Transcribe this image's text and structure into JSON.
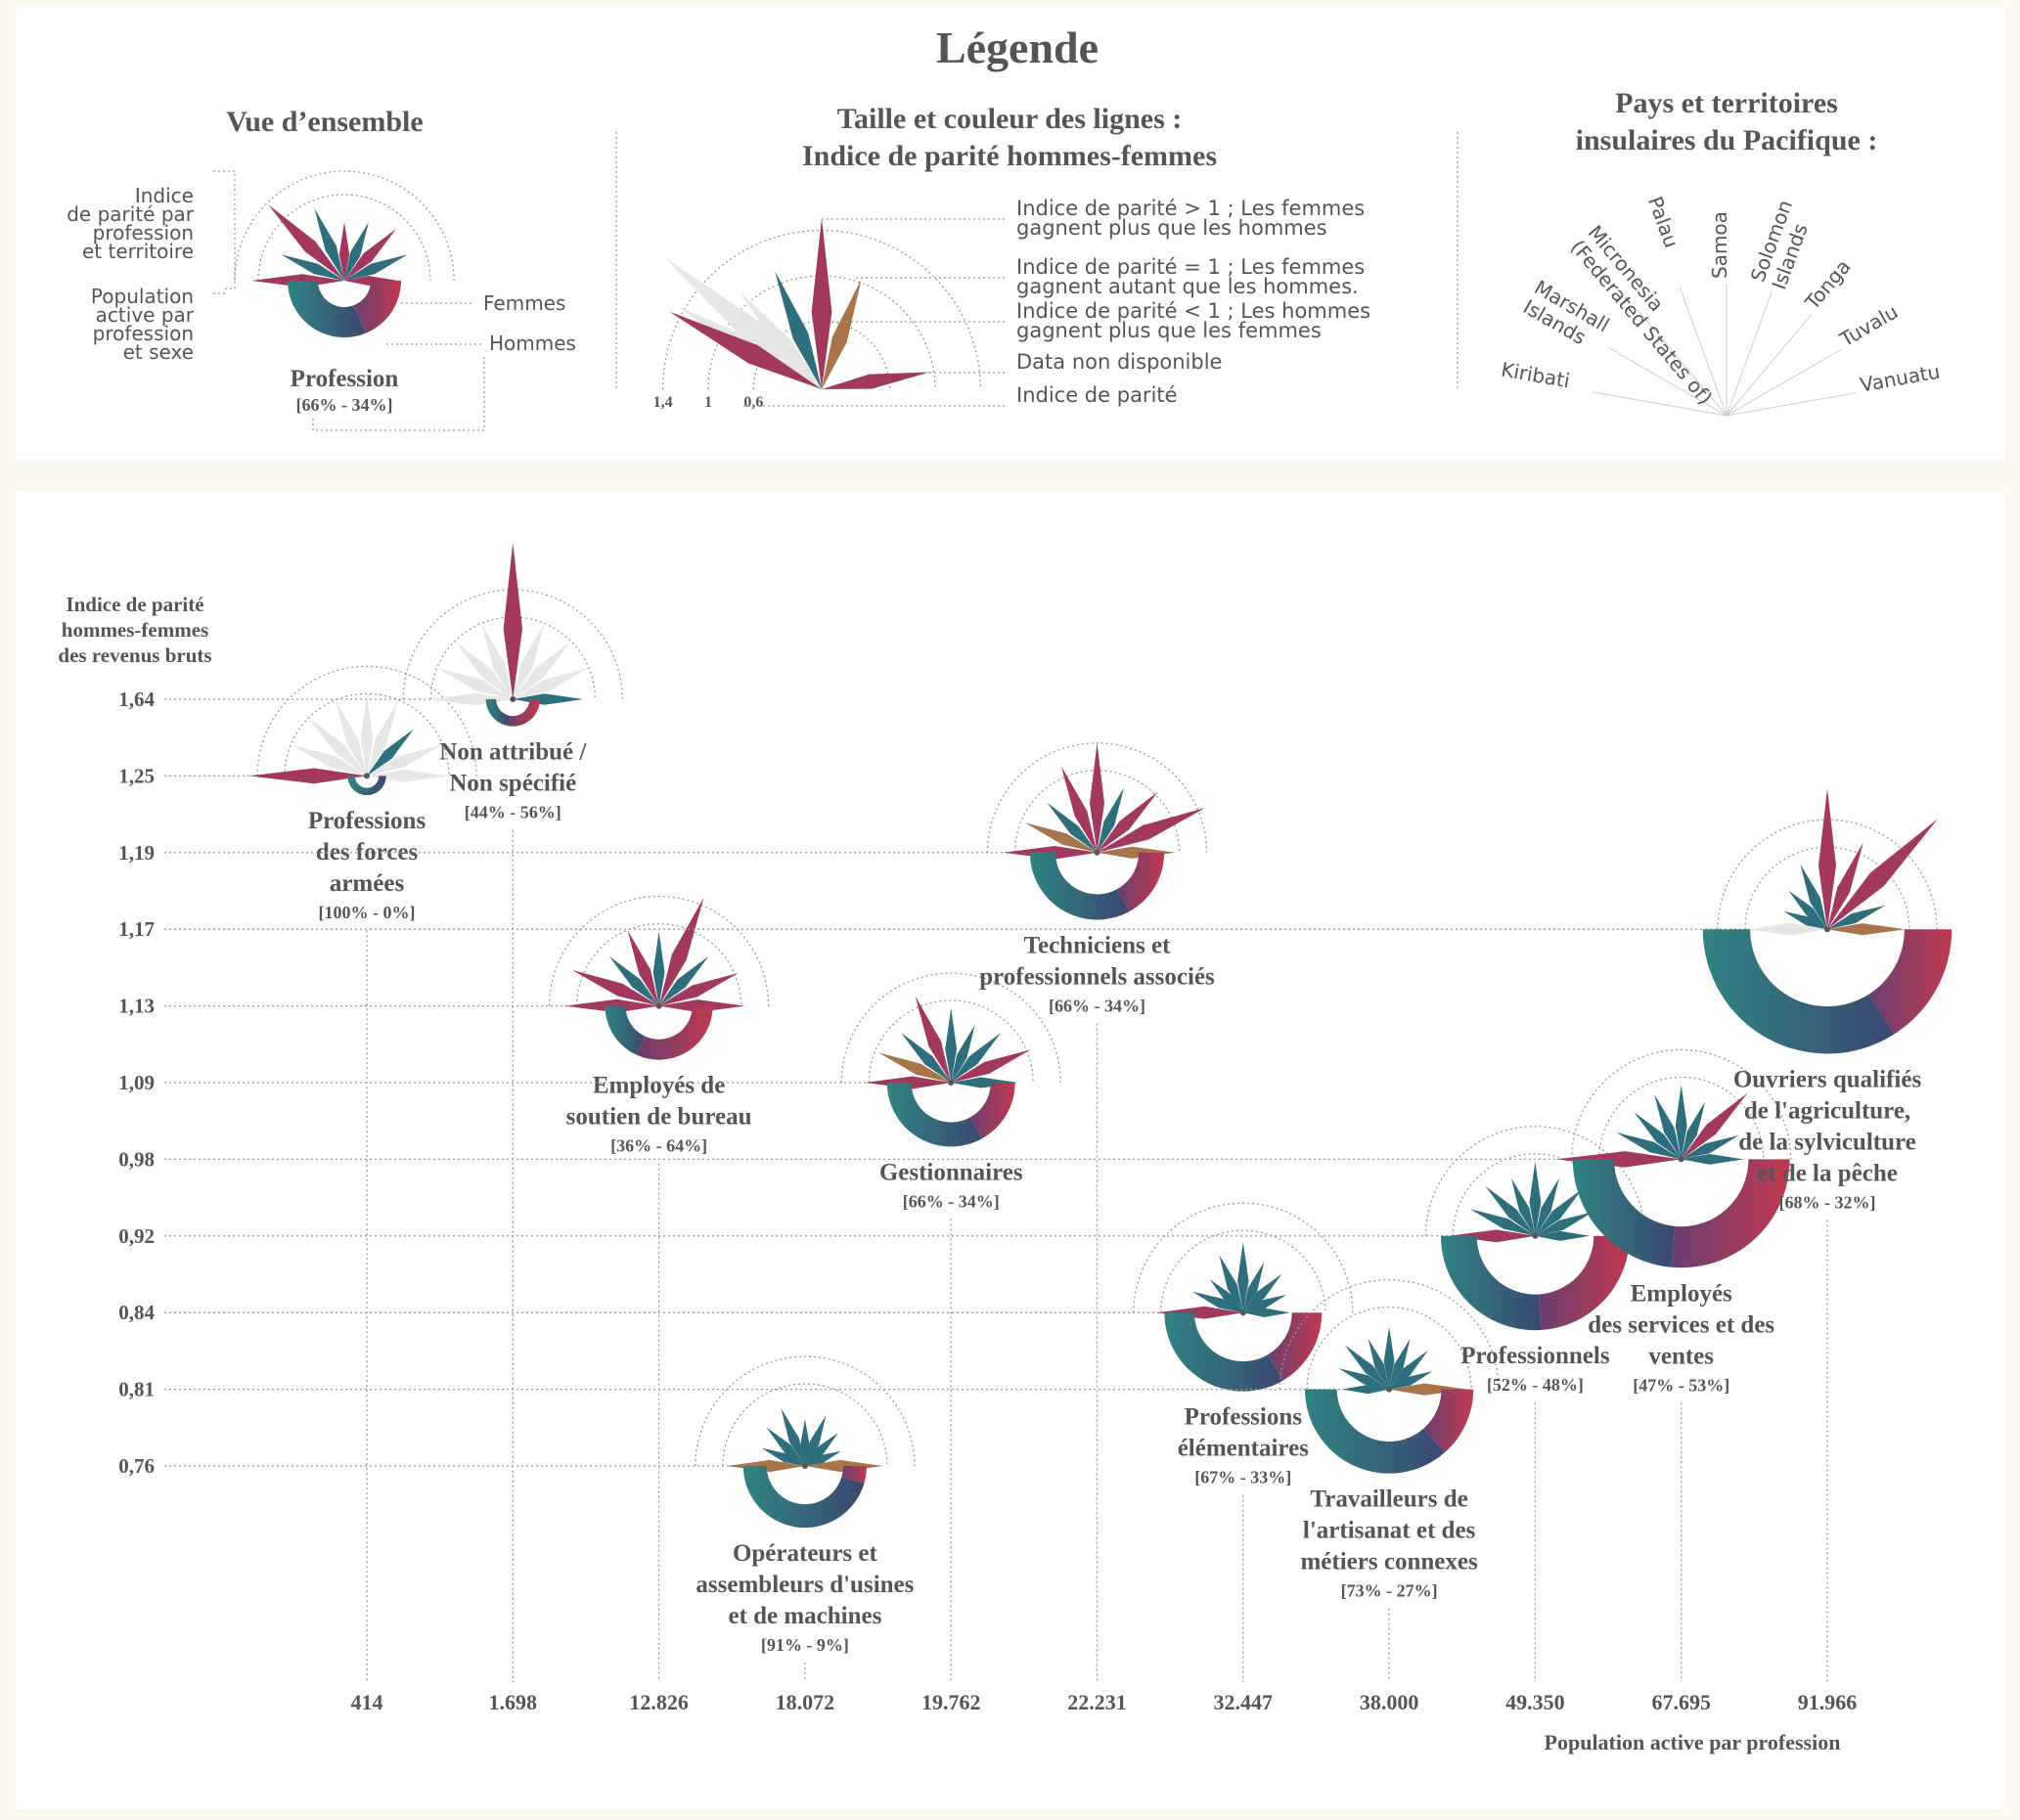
{
  "legend": {
    "title": "Légende",
    "overview": {
      "title": "Vue d’ensemble",
      "parity_note": [
        "Indice",
        "de parité par",
        "profession",
        "et territoire"
      ],
      "population_note": [
        "Population",
        "active par",
        "profession",
        "et sexe"
      ],
      "women": "Femmes",
      "men": "Hommes",
      "profession": "Profession",
      "share": "[66% - 34%]"
    },
    "lines": {
      "title": [
        "Taille et couleur des lignes :",
        "Indice de parité hommes-femmes"
      ],
      "items": [
        [
          "Indice de parité > 1 ; Les femmes",
          "gagnent plus que les hommes"
        ],
        [
          "Indice de parité = 1 ; Les femmes",
          "gagnent autant que les hommes."
        ],
        [
          "Indice de parité < 1 ; Les hommes",
          "gagnent plus que les femmes"
        ],
        [
          "Data non disponible"
        ],
        [
          "Indice de parité"
        ]
      ],
      "scale": [
        {
          "value": 1.4,
          "label": "1,4"
        },
        1,
        {
          "value": 0.6,
          "label": "0,6"
        }
      ]
    },
    "territories": {
      "title": [
        "Pays et territoires",
        "insulaires du Pacifique :"
      ]
    }
  },
  "chart_data": {
    "type": "glyph",
    "ylabel": [
      "Indice de parité",
      "hommes-femmes",
      "des revenus bruts"
    ],
    "xlabel": "Population active par profession",
    "countries": [
      [
        "Kiribati"
      ],
      [
        "Marshall",
        "Islands"
      ],
      [
        "Micronesia",
        "(Federated States of)"
      ],
      [
        "Palau"
      ],
      [
        "Samoa"
      ],
      [
        "Solomon",
        "Islands"
      ],
      [
        "Tonga"
      ],
      [
        "Tuvalu"
      ],
      [
        "Vanuatu"
      ]
    ],
    "colors": {
      "above": "#a3385f",
      "equal": "#a8744a",
      "below": "#2f6e7c",
      "missing": "#e6e6e6",
      "women": "#2f8482",
      "men": "#c0394f"
    },
    "xticks": [
      414,
      {
        "value": 1698,
        "label": "1.698"
      },
      {
        "value": 12826,
        "label": "12.826"
      },
      {
        "value": 18072,
        "label": "18.072"
      },
      {
        "value": 19762,
        "label": "19.762"
      },
      {
        "value": 22231,
        "label": "22.231"
      },
      {
        "value": 32447,
        "label": "32.447"
      },
      {
        "value": 38000,
        "label": "38.000"
      },
      {
        "value": 49350,
        "label": "49.350"
      },
      {
        "value": 67695,
        "label": "67.695"
      },
      {
        "value": 91966,
        "label": "91.966"
      }
    ],
    "yticks": [
      {
        "value": 1.64,
        "label": "1,64"
      },
      {
        "value": 1.25,
        "label": "1,25"
      },
      {
        "value": 1.19,
        "label": "1,19"
      },
      {
        "value": 1.17,
        "label": "1,17"
      },
      {
        "value": 1.13,
        "label": "1,13"
      },
      {
        "value": 1.09,
        "label": "1,09"
      },
      {
        "value": 0.98,
        "label": "0,98"
      },
      {
        "value": 0.92,
        "label": "0,92"
      },
      {
        "value": 0.84,
        "label": "0,84"
      },
      {
        "value": 0.81,
        "label": "0,81"
      },
      {
        "value": 0.76,
        "label": "0,76"
      }
    ],
    "occupations": [
      {
        "label": [
          "Professions",
          "des forces",
          "armées"
        ],
        "population": 414,
        "parity_index": 1.25,
        "women": 100,
        "men": 0,
        "share_label": "[100% - 0%]",
        "parity": [
          1.5,
          null,
          null,
          null,
          null,
          null,
          0.85,
          null,
          null
        ]
      },
      {
        "label": [
          "Non attribué /",
          "Non spécifié"
        ],
        "population": 1698,
        "parity_index": 1.64,
        "women": 44,
        "men": 56,
        "share_label": "[44% - 56%]",
        "parity": [
          null,
          null,
          null,
          null,
          2.0,
          null,
          null,
          null,
          0.9
        ]
      },
      {
        "label": [
          "Employés de",
          "soutien de bureau"
        ],
        "population": 12826,
        "parity_index": 1.13,
        "women": 36,
        "men": 64,
        "share_label": "[36% - 64%]",
        "parity": [
          1.2,
          1.2,
          0.9,
          1.05,
          0.95,
          1.5,
          0.9,
          1.1,
          1.1
        ]
      },
      {
        "label": [
          "Opérateurs et",
          "assembleurs d'usines",
          "et de machines"
        ],
        "population": 18072,
        "parity_index": 0.76,
        "women": 91,
        "men": 9,
        "share_label": "[91% - 9%]",
        "parity": [
          1.0,
          0.6,
          0.7,
          0.8,
          0.6,
          0.7,
          0.6,
          0.5,
          1.0
        ]
      },
      {
        "label": [
          "Gestionnaires"
        ],
        "population": 19762,
        "parity_index": 1.09,
        "women": 66,
        "men": 34,
        "share_label": "[66% - 34%]",
        "parity": [
          1.1,
          1.0,
          0.9,
          1.2,
          0.95,
          0.8,
          0.9,
          1.1,
          0.85
        ]
      },
      {
        "label": [
          "Techniciens et",
          "professionnels associés"
        ],
        "population": 22231,
        "parity_index": 1.19,
        "women": 66,
        "men": 34,
        "share_label": "[66% - 34%]",
        "parity": [
          1.2,
          1.0,
          0.9,
          1.2,
          1.4,
          0.9,
          1.1,
          1.5,
          1.0
        ]
      },
      {
        "label": [
          "Professions",
          "élémentaires"
        ],
        "population": 32447,
        "parity_index": 0.84,
        "women": 67,
        "men": 33,
        "share_label": "[67% - 33%]",
        "parity": [
          1.1,
          0.7,
          0.6,
          0.8,
          0.9,
          0.7,
          0.7,
          0.6,
          0.6
        ]
      },
      {
        "label": [
          "Travailleurs de",
          "l'artisanat et des",
          "métiers connexes"
        ],
        "population": 38000,
        "parity_index": 0.81,
        "women": 73,
        "men": 27,
        "share_label": "[73% - 27%]",
        "parity": [
          0.6,
          0.7,
          0.8,
          0.7,
          0.8,
          0.7,
          0.7,
          0.6,
          1.0
        ]
      },
      {
        "label": [
          "Professionnels"
        ],
        "population": 49350,
        "parity_index": 0.92,
        "women": 52,
        "men": 48,
        "share_label": "[52% - 48%]",
        "parity": [
          1.1,
          0.9,
          0.9,
          0.8,
          0.95,
          0.8,
          0.85,
          0.8,
          0.7
        ]
      },
      {
        "label": [
          "Employés",
          "des services et des",
          "ventes"
        ],
        "population": 67695,
        "parity_index": 0.98,
        "women": 47,
        "men": 53,
        "share_label": "[47% - 53%]",
        "parity": [
          1.6,
          0.9,
          0.85,
          0.9,
          0.95,
          0.8,
          1.2,
          0.8,
          0.8
        ]
      },
      {
        "label": [
          "Ouvriers qualifiés",
          "de l'agriculture,",
          "de la sylviculture",
          "et de la pêche"
        ],
        "population": 91966,
        "parity_index": 1.17,
        "women": 68,
        "men": 32,
        "share_label": "[68% - 32%]",
        "parity": [
          null,
          0.6,
          0.7,
          0.9,
          1.8,
          1.2,
          2.0,
          0.8,
          1.0
        ]
      }
    ]
  }
}
